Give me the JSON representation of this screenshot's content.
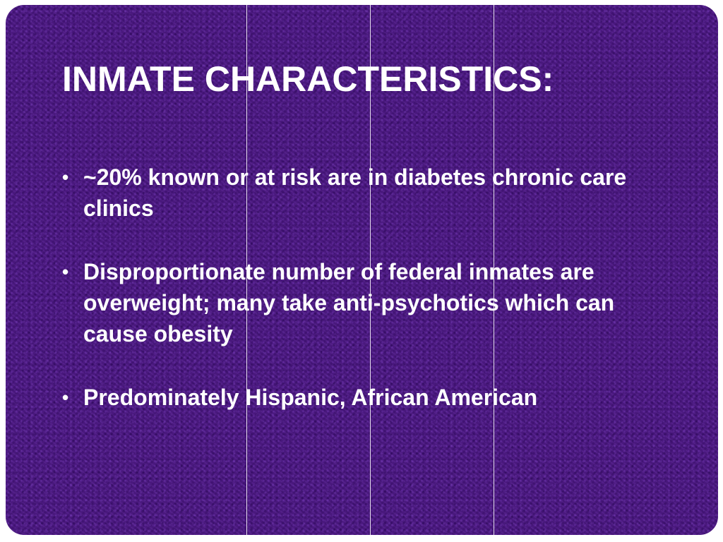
{
  "slide": {
    "title": "INMATE CHARACTERISTICS:",
    "bullets": [
      "~20% known or at risk are in diabetes chronic care clinics",
      "Disproportionate number of federal inmates are overweight; many take anti-psychotics which can cause obesity",
      "Predominately Hispanic, African American"
    ]
  },
  "colors": {
    "background": "#4a1583",
    "text": "#ffffff",
    "divider_lines": "#e8e0f0"
  }
}
